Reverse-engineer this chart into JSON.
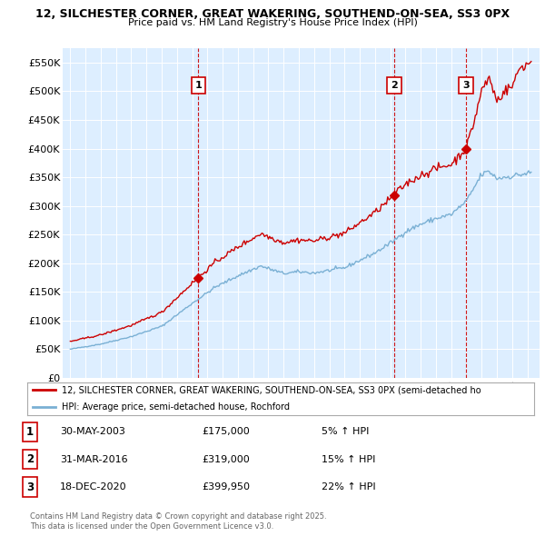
{
  "title1": "12, SILCHESTER CORNER, GREAT WAKERING, SOUTHEND-ON-SEA, SS3 0PX",
  "title2": "Price paid vs. HM Land Registry's House Price Index (HPI)",
  "ylim": [
    0,
    575000
  ],
  "yticks": [
    0,
    50000,
    100000,
    150000,
    200000,
    250000,
    300000,
    350000,
    400000,
    450000,
    500000,
    550000
  ],
  "ytick_labels": [
    "£0",
    "£50K",
    "£100K",
    "£150K",
    "£200K",
    "£250K",
    "£300K",
    "£350K",
    "£400K",
    "£450K",
    "£500K",
    "£550K"
  ],
  "xlim_start": 1994.5,
  "xlim_end": 2025.8,
  "sale_years": [
    2003.41,
    2016.25,
    2020.97
  ],
  "sale_prices": [
    175000,
    319000,
    399950
  ],
  "sale_labels": [
    "1",
    "2",
    "3"
  ],
  "sale_date_strs": [
    "30-MAY-2003",
    "31-MAR-2016",
    "18-DEC-2020"
  ],
  "sale_price_strs": [
    "£175,000",
    "£319,000",
    "£399,950"
  ],
  "sale_hpi_strs": [
    "5% ↑ HPI",
    "15% ↑ HPI",
    "22% ↑ HPI"
  ],
  "red_color": "#cc0000",
  "blue_color": "#7ab0d4",
  "bg_color": "#ddeeff",
  "legend_label_red": "12, SILCHESTER CORNER, GREAT WAKERING, SOUTHEND-ON-SEA, SS3 0PX (semi-detached ho",
  "legend_label_blue": "HPI: Average price, semi-detached house, Rochford",
  "footer1": "Contains HM Land Registry data © Crown copyright and database right 2025.",
  "footer2": "This data is licensed under the Open Government Licence v3.0."
}
